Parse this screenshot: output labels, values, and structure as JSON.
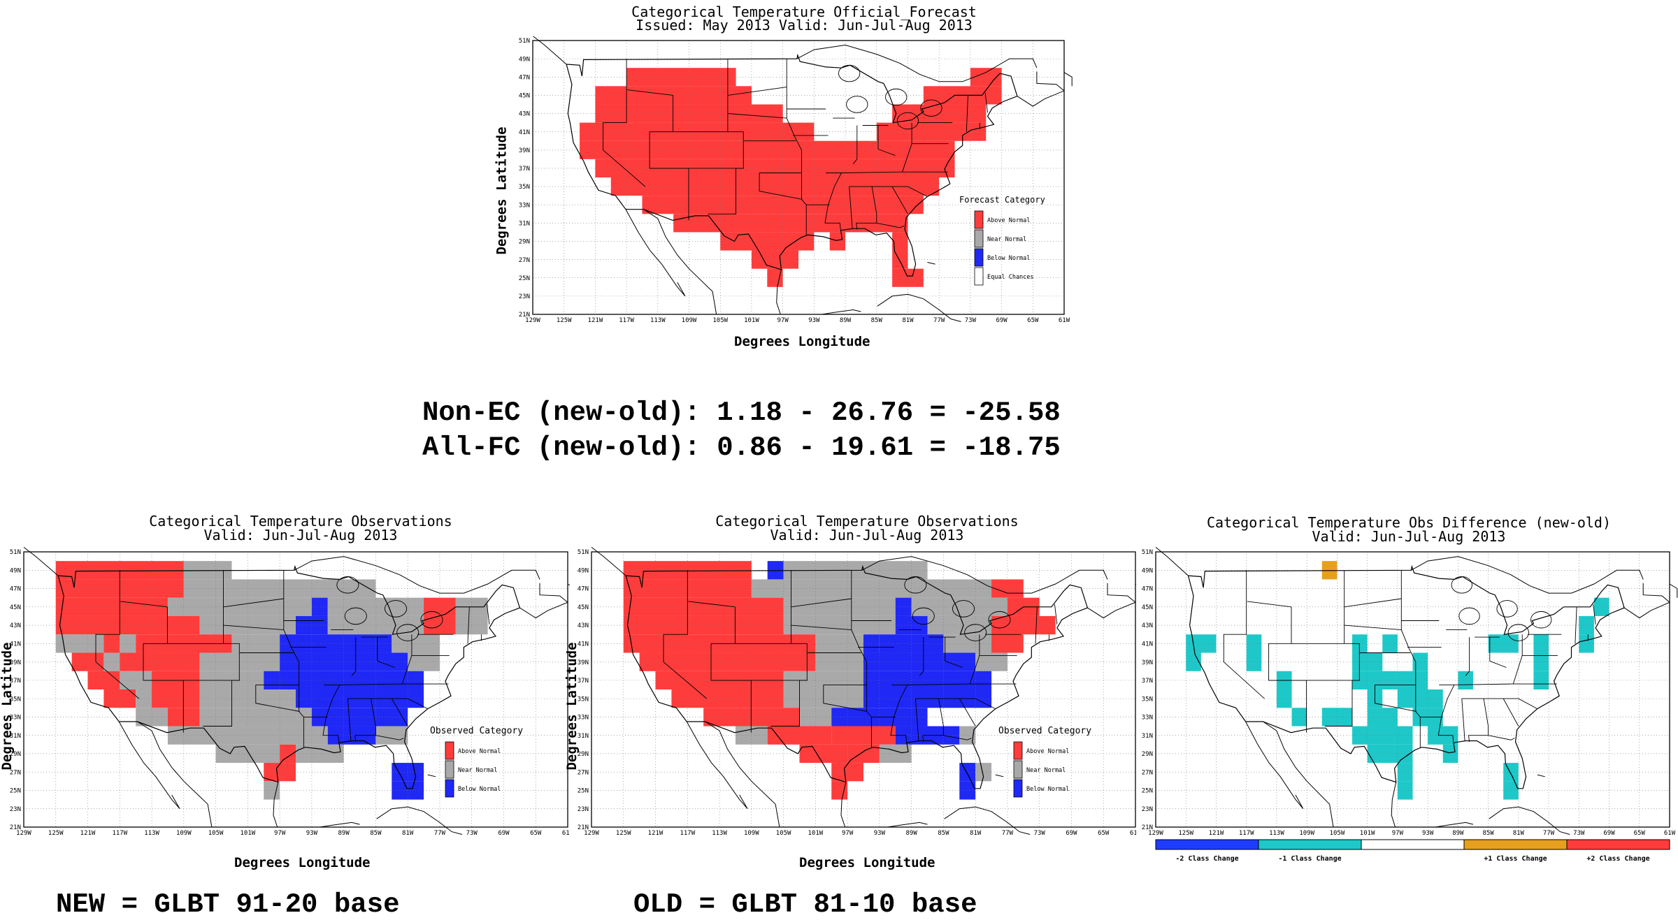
{
  "maps": {
    "forecast": {
      "title1": "Categorical Temperature Official_Forecast",
      "title2": "Issued: May 2013 Valid: Jun-Jul-Aug 2013",
      "xlabel": "Degrees Longitude",
      "ylabel": "Degrees Latitude",
      "legend_title": "Forecast Category",
      "legend": [
        "Above Normal",
        "Near Normal",
        "Below Normal",
        "Equal Chances"
      ]
    },
    "obs_new": {
      "title1": "Categorical Temperature Observations",
      "title2": "Valid: Jun-Jul-Aug 2013",
      "xlabel": "Degrees Longitude",
      "ylabel": "Degrees Latitude",
      "legend_title": "Observed Category",
      "legend": [
        "Above Normal",
        "Near Normal",
        "Below Normal"
      ]
    },
    "obs_old": {
      "title1": "Categorical Temperature Observations",
      "title2": "Valid: Jun-Jul-Aug 2013",
      "xlabel": "Degrees Longitude",
      "ylabel": "Degrees Latitude",
      "legend_title": "Observed Category",
      "legend": [
        "Above Normal",
        "Near Normal",
        "Below Normal"
      ]
    },
    "diff": {
      "title1": "Categorical Temperature Obs Difference (new-old)",
      "title2": "Valid: Jun-Jul-Aug 2013",
      "legend": [
        "-2 Class Change",
        "-1 Class Change",
        "",
        "+1 Class Change",
        "+2 Class Change"
      ]
    }
  },
  "axes": {
    "lat_ticks": [
      "51N",
      "49N",
      "47N",
      "45N",
      "43N",
      "41N",
      "39N",
      "37N",
      "35N",
      "33N",
      "31N",
      "29N",
      "27N",
      "25N",
      "23N",
      "21N"
    ],
    "lon_ticks": [
      "129W",
      "125W",
      "121W",
      "117W",
      "113W",
      "109W",
      "105W",
      "101W",
      "97W",
      "93W",
      "89W",
      "85W",
      "81W",
      "77W",
      "73W",
      "69W",
      "65W",
      "61W"
    ]
  },
  "colors": {
    "above": "#ff3c3c",
    "near": "#a9a9a9",
    "below": "#1f28f5",
    "equal": "#ffffff",
    "minus2": "#1e3cff",
    "minus1": "#1ec8c8",
    "plus1": "#e6a01e",
    "plus2": "#ff3c3c"
  },
  "stats": {
    "line1": "Non-EC (new-old): 1.18 - 26.76 = -25.58",
    "line2": "All-FC (new-old): 0.86 - 19.61 = -18.75"
  },
  "footer": {
    "new": "NEW = GLBT 91-20 base",
    "old": "OLD = GLBT 81-10 base"
  }
}
